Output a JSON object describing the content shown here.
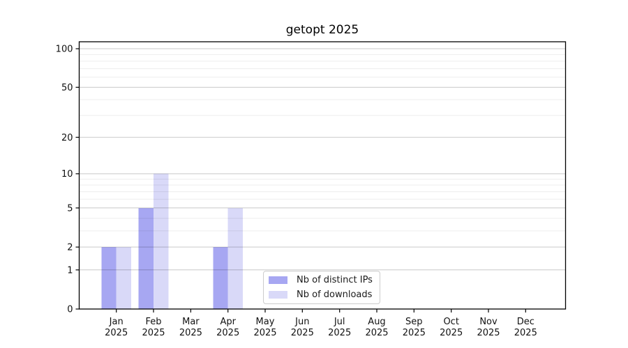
{
  "chart_data": {
    "type": "bar",
    "title": "getopt 2025",
    "categories": [
      "Jan",
      "Feb",
      "Mar",
      "Apr",
      "May",
      "Jun",
      "Jul",
      "Aug",
      "Sep",
      "Oct",
      "Nov",
      "Dec"
    ],
    "category_year": "2025",
    "series": [
      {
        "name": "Nb of distinct IPs",
        "color": "#a7a7f2",
        "values": [
          2,
          5,
          0,
          2,
          0,
          0,
          0,
          0,
          0,
          0,
          0,
          0
        ]
      },
      {
        "name": "Nb of downloads",
        "color": "#d9d9f8",
        "values": [
          2,
          10,
          0,
          5,
          0,
          0,
          0,
          0,
          0,
          0,
          0,
          0
        ]
      }
    ],
    "xlabel": "",
    "ylabel": "",
    "yscale": "log1p",
    "yticks": [
      0,
      1,
      2,
      5,
      10,
      20,
      50,
      100
    ],
    "yminorticks": [
      3,
      4,
      6,
      7,
      8,
      9,
      30,
      40,
      60,
      70,
      80,
      90
    ],
    "ylim": [
      0,
      114
    ],
    "grid": true,
    "legend_position": "inside-bottom-center"
  },
  "colors": {
    "bar_ips": "#a7a7f2",
    "bar_downloads": "#d9d9f8",
    "spine": "#000000",
    "tick_text": "#111111",
    "grid_major": "#c9c9c9",
    "grid_minor": "#ececec",
    "legend_border": "#cccccc",
    "background": "#ffffff"
  }
}
